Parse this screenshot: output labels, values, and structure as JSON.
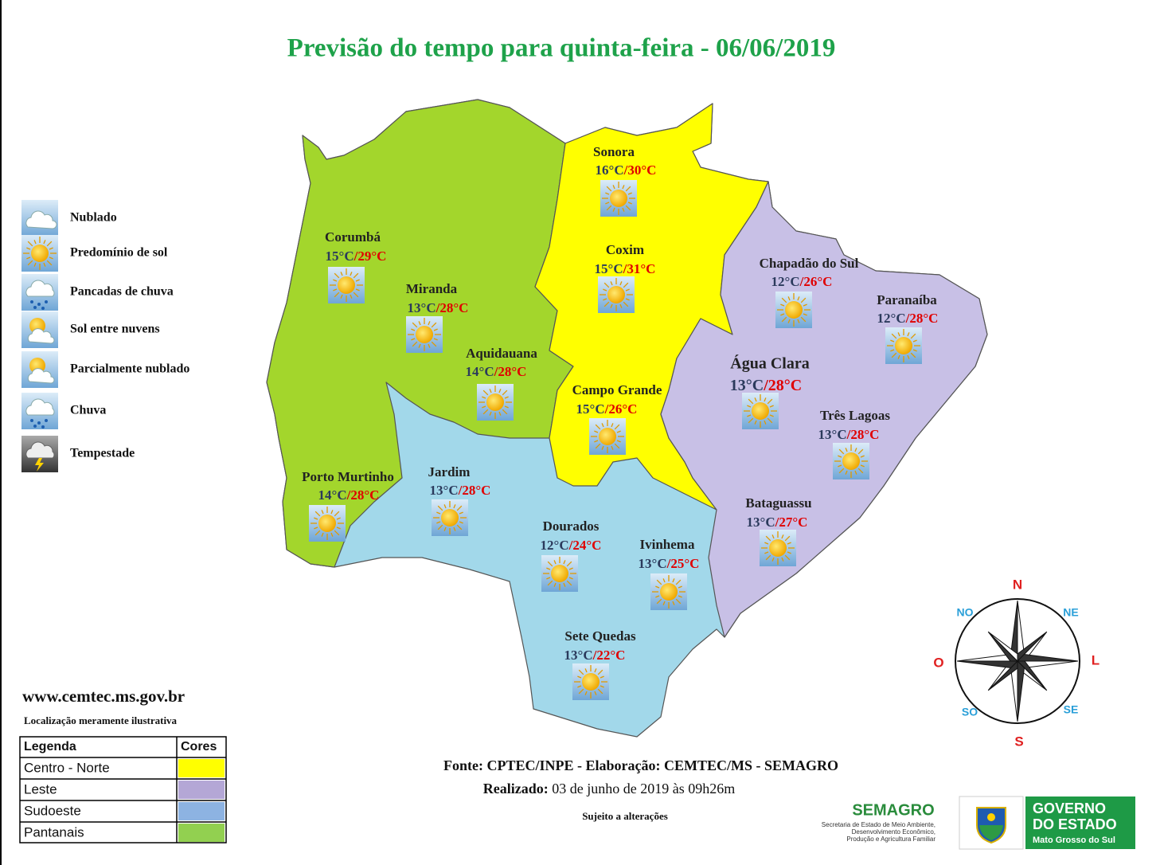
{
  "header": {
    "title": "Previsão do tempo para quinta-feira  - 06/06/2019"
  },
  "weather_legend": [
    "Nublado",
    "Predomínio de sol",
    "Pancadas de chuva",
    "Sol entre nuvens",
    "Parcialmente nublado",
    "Chuva",
    "Tempestade"
  ],
  "temp_separator": "/",
  "cities": [
    {
      "name": "Sonora",
      "min": "16°C",
      "max": "30°C"
    },
    {
      "name": "Coxim",
      "min": "15°C",
      "max": "31°C"
    },
    {
      "name": "Corumbá",
      "min": "15°C",
      "max": "29°C"
    },
    {
      "name": "Miranda",
      "min": "13°C",
      "max": "28°C"
    },
    {
      "name": "Aquidauana",
      "min": "14°C",
      "max": "28°C"
    },
    {
      "name": "Campo Grande",
      "min": "15°C",
      "max": "26°C"
    },
    {
      "name": "Chapadão do Sul",
      "min": "12°C",
      "max": "26°C"
    },
    {
      "name": "Paranaíba",
      "min": "12°C",
      "max": "28°C"
    },
    {
      "name": "Água Clara",
      "min": "13°C",
      "max": "28°C"
    },
    {
      "name": "Três Lagoas",
      "min": "13°C",
      "max": "28°C"
    },
    {
      "name": "Bataguassu",
      "min": "13°C",
      "max": "27°C"
    },
    {
      "name": "Porto Murtinho",
      "min": "14°C",
      "max": "28°C"
    },
    {
      "name": "Jardim",
      "min": "13°C",
      "max": "28°C"
    },
    {
      "name": "Dourados",
      "min": "12°C",
      "max": "24°C"
    },
    {
      "name": "Ivinhema",
      "min": "13°C",
      "max": "25°C"
    },
    {
      "name": "Sete Quedas",
      "min": "13°C",
      "max": "22°C"
    }
  ],
  "website": "www.cemtec.ms.gov.br",
  "disclaimer": "Localização meramente ilustrativa",
  "color_legend": {
    "headers": [
      "Legenda",
      "Cores"
    ],
    "rows": [
      {
        "region": "Centro - Norte",
        "color": "#ffff00"
      },
      {
        "region": "Leste",
        "color": "#b4a7d6"
      },
      {
        "region": "Sudoeste",
        "color": "#8db3e2"
      },
      {
        "region": "Pantanais",
        "color": "#92d050"
      }
    ]
  },
  "footer": {
    "source": "Fonte: CPTEC/INPE - Elaboração: CEMTEC/MS - SEMAGRO",
    "made_label": "Realizado:",
    "made_text": " 03 de junho de 2019 às 09h26m",
    "note": "Sujeito a alterações"
  },
  "compass": [
    "N",
    "NE",
    "L",
    "SE",
    "S",
    "SO",
    "O",
    "NO"
  ],
  "logos": {
    "semagro": "SEMAGRO",
    "semagro_subtitle": [
      "Secretaria de Estado de Meio Ambiente,",
      "Desenvolvimento Econômico,",
      "Produção e Agricultura Familiar"
    ],
    "gov": [
      "GOVERNO",
      "DO ESTADO"
    ],
    "gov_state": "Mato Grosso do Sul"
  }
}
